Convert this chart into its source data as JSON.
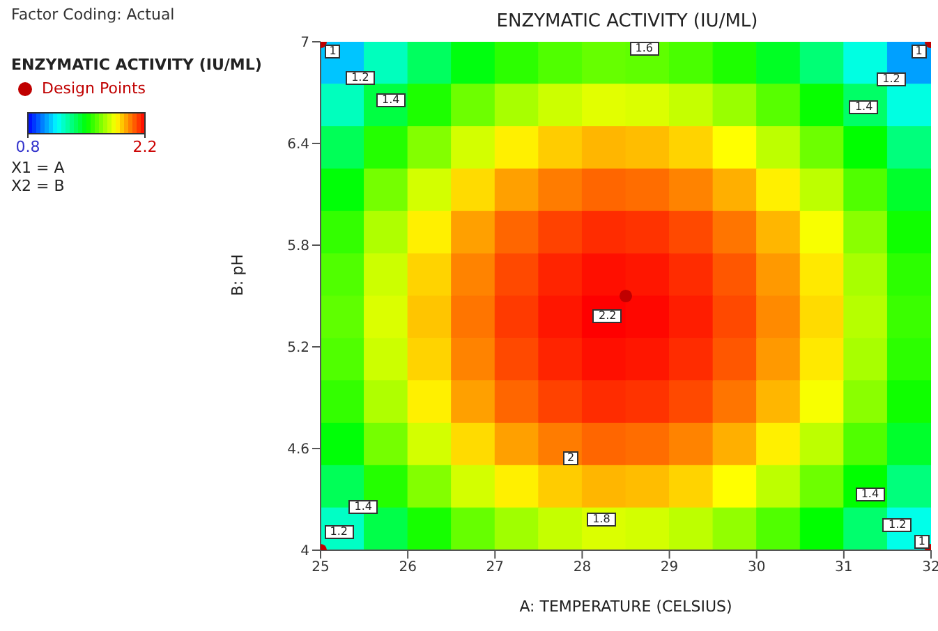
{
  "chart_data": {
    "type": "heatmap",
    "title": "ENZYMATIC ACTIVITY (IU/ML)",
    "xlabel": "A: TEMPERATURE (CELSIUS)",
    "ylabel": "B: pH",
    "legend_title": "ENZYMATIC ACTIVITY (IU/ML)",
    "legend": "top left",
    "marker": "circle",
    "x": [
      25.25,
      25.75,
      26.25,
      26.75,
      27.25,
      27.75,
      28.25,
      28.75,
      29.25,
      29.75,
      30.25,
      30.75,
      31.25,
      31.75
    ],
    "y": [
      6.875,
      6.625,
      6.375,
      6.125,
      5.875,
      5.625,
      5.375,
      5.125,
      4.875,
      4.625,
      4.375,
      4.125
    ],
    "cells": [
      [
        1.07,
        1.24,
        1.37,
        1.48,
        1.56,
        1.61,
        1.64,
        1.63,
        1.6,
        1.54,
        1.45,
        1.34,
        1.19,
        1.02
      ],
      [
        1.24,
        1.41,
        1.54,
        1.65,
        1.73,
        1.78,
        1.81,
        1.8,
        1.77,
        1.71,
        1.62,
        1.51,
        1.36,
        1.19
      ],
      [
        1.38,
        1.55,
        1.68,
        1.79,
        1.87,
        1.92,
        1.95,
        1.94,
        1.91,
        1.85,
        1.76,
        1.65,
        1.5,
        1.33
      ],
      [
        1.49,
        1.66,
        1.79,
        1.9,
        1.98,
        2.03,
        2.06,
        2.05,
        2.02,
        1.96,
        1.87,
        1.76,
        1.61,
        1.44
      ],
      [
        1.57,
        1.74,
        1.87,
        1.98,
        2.06,
        2.11,
        2.14,
        2.13,
        2.1,
        2.04,
        1.95,
        1.84,
        1.69,
        1.52
      ],
      [
        1.61,
        1.78,
        1.91,
        2.02,
        2.1,
        2.15,
        2.18,
        2.17,
        2.14,
        2.08,
        1.99,
        1.88,
        1.73,
        1.56
      ],
      [
        1.63,
        1.8,
        1.93,
        2.04,
        2.12,
        2.17,
        2.2,
        2.19,
        2.16,
        2.1,
        2.01,
        1.9,
        1.75,
        1.58
      ],
      [
        1.61,
        1.78,
        1.91,
        2.02,
        2.1,
        2.15,
        2.18,
        2.17,
        2.14,
        2.08,
        1.99,
        1.88,
        1.73,
        1.56
      ],
      [
        1.57,
        1.74,
        1.87,
        1.98,
        2.06,
        2.11,
        2.14,
        2.13,
        2.1,
        2.04,
        1.95,
        1.84,
        1.69,
        1.52
      ],
      [
        1.49,
        1.66,
        1.79,
        1.9,
        1.98,
        2.03,
        2.06,
        2.05,
        2.02,
        1.96,
        1.87,
        1.76,
        1.61,
        1.44
      ],
      [
        1.38,
        1.55,
        1.68,
        1.79,
        1.87,
        1.92,
        1.95,
        1.94,
        1.91,
        1.85,
        1.76,
        1.65,
        1.5,
        1.33
      ],
      [
        1.23,
        1.4,
        1.53,
        1.64,
        1.72,
        1.77,
        1.8,
        1.79,
        1.76,
        1.7,
        1.61,
        1.5,
        1.35,
        1.18
      ]
    ],
    "clim": [
      0.8,
      2.2
    ],
    "cticks": [
      0.8,
      2.2
    ],
    "xlim": [
      25,
      32
    ],
    "xticks": [
      25,
      26,
      27,
      28,
      29,
      30,
      31,
      32
    ],
    "ylim": [
      4,
      7
    ],
    "yticks": [
      4,
      4.6,
      5.2,
      5.8,
      6.4,
      7
    ],
    "series": [
      {
        "type": "scatter",
        "name": "Design Points",
        "color": "#c00000",
        "x": [
          25,
          25,
          32,
          32,
          28.5
        ],
        "values": [
          4,
          7,
          4,
          7,
          5.5
        ]
      }
    ],
    "annotations": [
      "Factor Coding: Actual",
      "X1 = A",
      "X2 = B",
      "1",
      "1.2",
      "1.4",
      "1.6",
      "1.4",
      "1.2",
      "1",
      "2.2",
      "2",
      "1.8",
      "1.4",
      "1.2",
      "1.4",
      "1.2",
      "1"
    ]
  }
}
